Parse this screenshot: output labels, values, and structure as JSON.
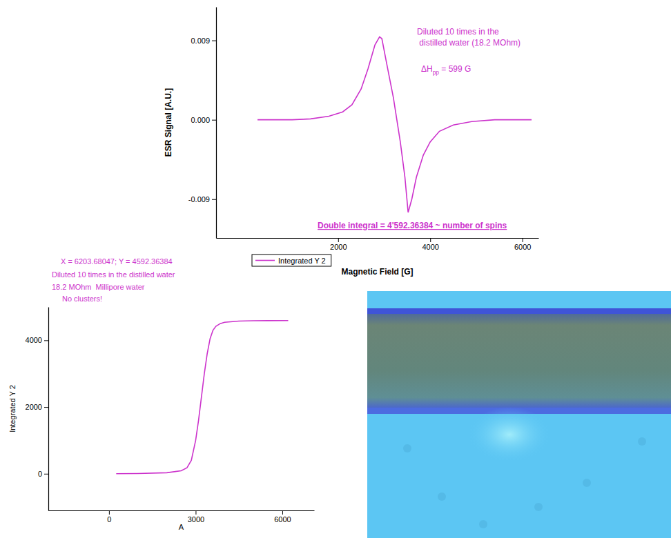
{
  "chart_data": [
    {
      "type": "line",
      "x_label": "Magnetic Field [G]",
      "y_label": "ESR Signal [A.U.]",
      "xlim": [
        -650,
        6350
      ],
      "xticks": [
        2000,
        4000,
        6000
      ],
      "ylim": [
        -0.0134,
        0.0128
      ],
      "yticks": [
        -0.009,
        {
          "value": 0,
          "label": "0.000"
        },
        0.009
      ],
      "grid": false,
      "x": [
        250,
        600,
        1000,
        1400,
        1800,
        2100,
        2300,
        2500,
        2650,
        2800,
        2900,
        2950,
        3050,
        3200,
        3350,
        3450,
        3520,
        3600,
        3700,
        3850,
        4000,
        4200,
        4500,
        4900,
        5400,
        5900,
        6200
      ],
      "series": [
        {
          "color": "#cc33cc",
          "values": [
            0,
            0,
            0,
            0.0001,
            0.0004,
            0.0009,
            0.0017,
            0.0035,
            0.0058,
            0.0085,
            0.0094,
            0.0092,
            0.0065,
            0.0025,
            -0.0025,
            -0.0065,
            -0.0105,
            -0.009,
            -0.0065,
            -0.004,
            -0.0025,
            -0.0013,
            -0.0006,
            -0.0002,
            0,
            0,
            0
          ]
        }
      ],
      "annotations": [
        {
          "text": [
            "Diluted 10 times in the",
            " distilled water (18.2 MOhm)"
          ]
        },
        {
          "text": "ΔH",
          "subscript": "pp",
          "text_after": " = 599 G"
        },
        {
          "text": "Double integral = 4'592.36384 ~ number of spins"
        }
      ]
    },
    {
      "type": "line",
      "x_label": "A",
      "y_label": "Integrated Y 2",
      "xlim": [
        -2100,
        7100
      ],
      "xticks": [
        0,
        3000,
        6000
      ],
      "ylim": [
        -1100,
        5000
      ],
      "yticks": [
        0,
        2000,
        4000
      ],
      "grid": false,
      "legend": "top-right",
      "x": [
        250,
        1000,
        2000,
        2500,
        2700,
        2850,
        3000,
        3100,
        3200,
        3300,
        3400,
        3500,
        3600,
        3700,
        3850,
        4000,
        4500,
        5000,
        5500,
        6203.68047
      ],
      "series": [
        {
          "name": "Integrated Y 2",
          "color": "#cc33cc",
          "values": [
            0,
            5,
            30,
            90,
            180,
            400,
            1000,
            1600,
            2300,
            3000,
            3600,
            4050,
            4300,
            4420,
            4500,
            4540,
            4575,
            4585,
            4590,
            4592.36384
          ]
        }
      ],
      "annotations": [
        {
          "text": "X = 6203.68047; Y = 4592.36384"
        },
        {
          "text": "Diluted 10 times in the distilled water"
        },
        {
          "text": "18.2 MOhm  Millipore water"
        },
        {
          "text": "No clusters!"
        }
      ]
    }
  ]
}
